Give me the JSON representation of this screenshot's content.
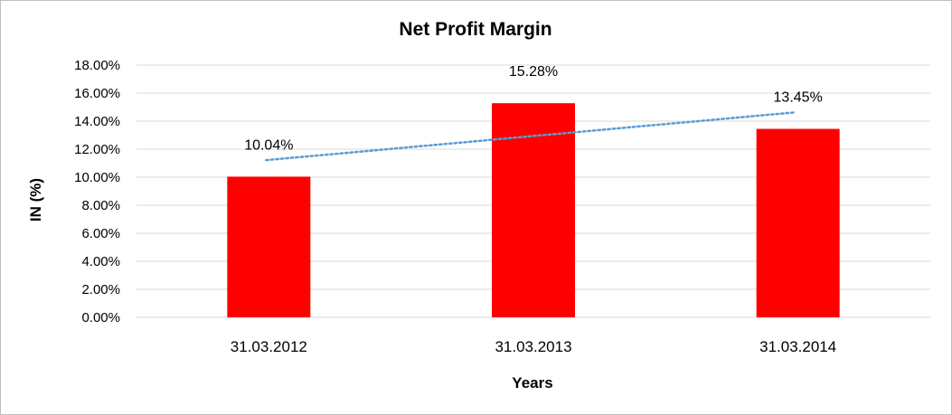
{
  "chart_data": {
    "type": "bar",
    "title": "Net Profit Margin",
    "xlabel": "Years",
    "ylabel": "IN (%)",
    "categories": [
      "31.03.2012",
      "31.03.2013",
      "31.03.2014"
    ],
    "values": [
      10.04,
      15.28,
      13.45
    ],
    "data_labels": [
      "10.04%",
      "15.28%",
      "13.45%"
    ],
    "yticks": [
      "0.00%",
      "2.00%",
      "4.00%",
      "6.00%",
      "8.00%",
      "10.00%",
      "12.00%",
      "14.00%",
      "16.00%",
      "18.00%"
    ],
    "ylim": [
      0,
      18
    ],
    "ytick_step": 2,
    "grid": true,
    "legend": "none",
    "trendline": {
      "type": "linear",
      "style": "dotted"
    },
    "colors": {
      "bar": "#ff0000",
      "trendline": "#5b9bd5",
      "gridline": "#d9d9d9",
      "frame": "#bfbfbf"
    }
  }
}
